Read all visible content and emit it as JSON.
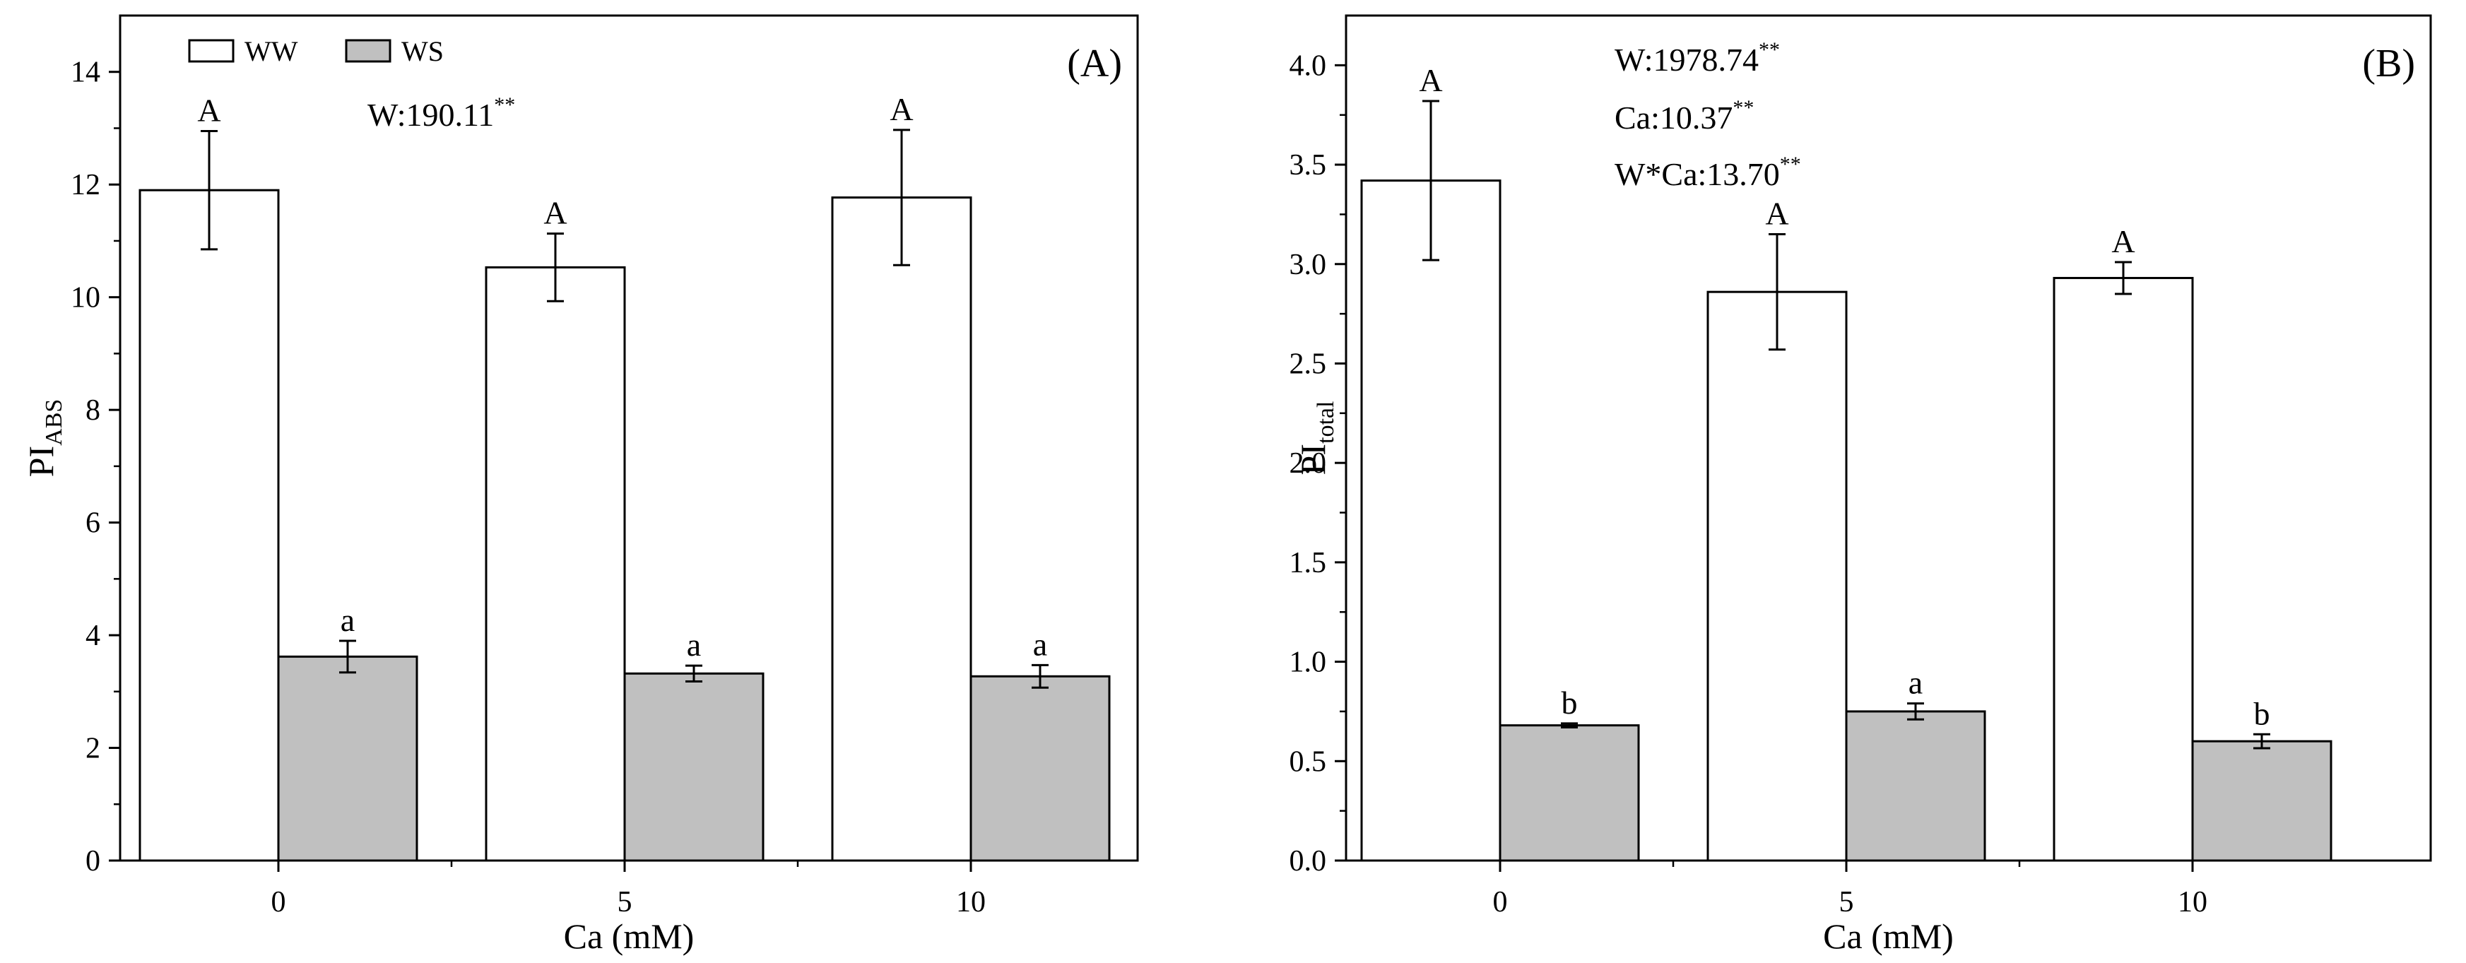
{
  "chart_data": [
    {
      "type": "bar",
      "panel_label": "(A)",
      "title": "",
      "xlabel": "Ca (mM)",
      "ylabel": "PI",
      "ylabel_sub": "ABS",
      "categories": [
        "0",
        "5",
        "10"
      ],
      "ylim": [
        0,
        15
      ],
      "yticks": [
        0,
        2,
        4,
        6,
        8,
        10,
        12,
        14
      ],
      "ytick_labels": [
        "0",
        "2",
        "4",
        "6",
        "8",
        "10",
        "12",
        "14"
      ],
      "series": [
        {
          "name": "WW",
          "color": "#ffffff",
          "values": [
            11.9,
            10.53,
            11.77
          ],
          "errors": [
            1.05,
            0.6,
            1.2
          ],
          "letters": [
            "A",
            "A",
            "A"
          ]
        },
        {
          "name": "WS",
          "color": "#c0c0c0",
          "values": [
            3.62,
            3.32,
            3.27
          ],
          "errors": [
            0.28,
            0.14,
            0.2
          ],
          "letters": [
            "a",
            "a",
            "a"
          ]
        }
      ],
      "stats": [
        {
          "text": "W:190.11",
          "sup": "**"
        }
      ],
      "legend": {
        "position": "top-left",
        "entries": [
          "WW",
          "WS"
        ]
      }
    },
    {
      "type": "bar",
      "panel_label": "(B)",
      "title": "",
      "xlabel": "Ca (mM)",
      "ylabel": "PI",
      "ylabel_sub": "total",
      "categories": [
        "0",
        "5",
        "10"
      ],
      "ylim": [
        0,
        4.25
      ],
      "yticks": [
        0,
        0.5,
        1.0,
        1.5,
        2.0,
        2.5,
        3.0,
        3.5,
        4.0
      ],
      "ytick_labels": [
        "0.0",
        "0.5",
        "1.0",
        "1.5",
        "2.0",
        "2.5",
        "3.0",
        "3.5",
        "4.0"
      ],
      "series": [
        {
          "name": "WW",
          "color": "#ffffff",
          "values": [
            3.42,
            2.86,
            2.93
          ],
          "errors": [
            0.4,
            0.29,
            0.08
          ],
          "letters": [
            "A",
            "A",
            "A"
          ]
        },
        {
          "name": "WS",
          "color": "#c0c0c0",
          "values": [
            0.68,
            0.75,
            0.6
          ],
          "errors": [
            0.01,
            0.04,
            0.035
          ],
          "letters": [
            "b",
            "a",
            "b"
          ]
        }
      ],
      "stats": [
        {
          "text": "W:1978.74",
          "sup": "**"
        },
        {
          "text": "Ca:10.37",
          "sup": "**"
        },
        {
          "text": "W*Ca:13.70",
          "sup": "**"
        }
      ],
      "legend": {
        "position": "none",
        "entries": []
      }
    }
  ]
}
